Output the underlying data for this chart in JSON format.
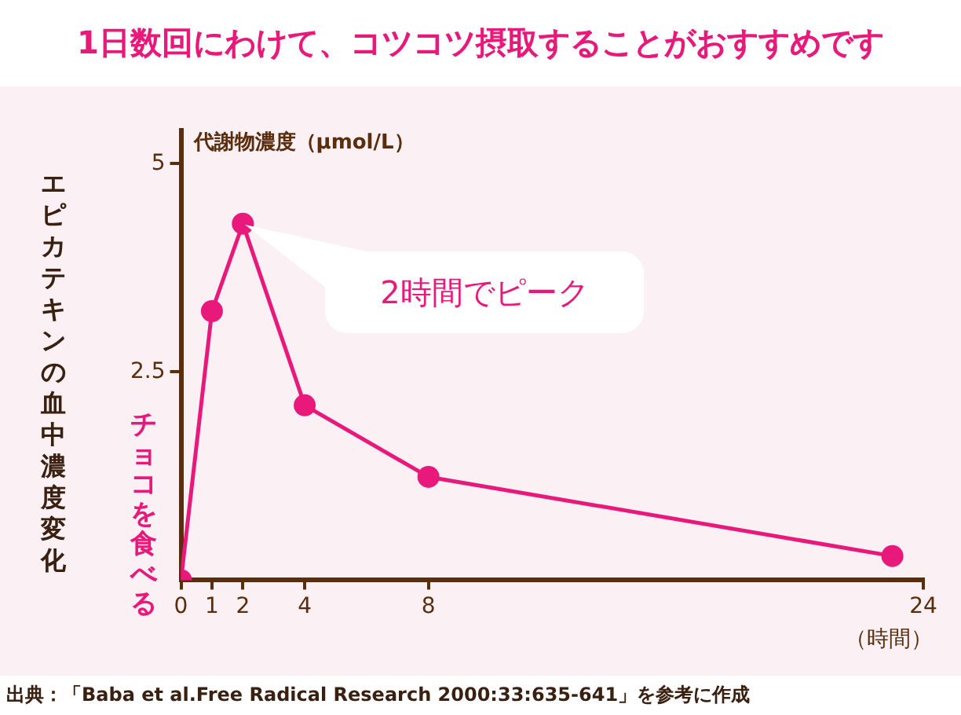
{
  "chart_data": {
    "type": "line",
    "title": "1日数回にわけて、コツコツ摂取することがおすすめです",
    "ylabel": "エピカテキンの血中濃度変化",
    "xlabel": "（時間）",
    "x": [
      0,
      1,
      2,
      4,
      8,
      23
    ],
    "series": [
      {
        "color": "#e8197a",
        "values": [
          0,
          3.23,
          4.28,
          2.1,
          1.24,
          0.29
        ]
      }
    ],
    "xlim": [
      0,
      24
    ],
    "xticks": [
      0,
      1,
      2,
      4,
      8,
      24
    ],
    "ylim": [
      0,
      5.4
    ],
    "yticks": [
      2.5,
      5
    ],
    "marker": "circle",
    "grid": false,
    "legend": false,
    "annotations": [
      "代謝物濃度（μmol/L）",
      "2時間でピーク",
      {
        "text": "チョコを食べる",
        "x": 0
      },
      "出典：「Baba et al.Free Radical Research 2000:33:635-641」を参考に作成"
    ]
  }
}
